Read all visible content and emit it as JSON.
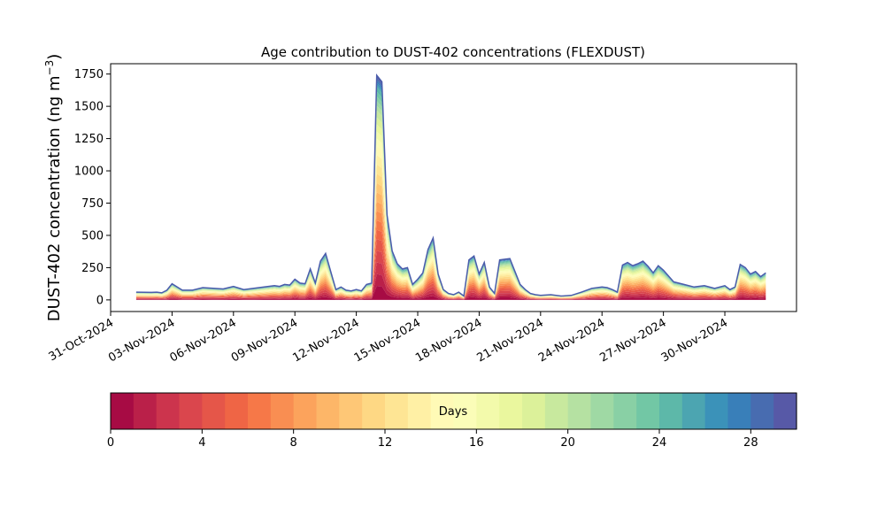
{
  "chart_data": {
    "type": "area",
    "stacked": true,
    "title": "Age contribution to DUST-402 concentrations (FLEXDUST)",
    "ylabel_main": "DUST-402 concentration (ng m",
    "ylabel_sup": "−3",
    "ylabel_close": ")",
    "xlabel": "",
    "ylim": [
      -90,
      1830
    ],
    "yticks": [
      0,
      250,
      500,
      750,
      1000,
      1250,
      1500,
      1750
    ],
    "ytick_labels": [
      "0",
      "250",
      "500",
      "750",
      "1000",
      "1250",
      "1500",
      "1750"
    ],
    "xlim": [
      "2024-10-31T00:00",
      "2024-12-03T12:00"
    ],
    "xtick_dates": [
      "2024-10-31",
      "2024-11-03",
      "2024-11-06",
      "2024-11-09",
      "2024-11-12",
      "2024-11-15",
      "2024-11-18",
      "2024-11-21",
      "2024-11-24",
      "2024-11-27",
      "2024-11-30"
    ],
    "xtick_labels": [
      "31-Oct-2024",
      "03-Nov-2024",
      "06-Nov-2024",
      "09-Nov-2024",
      "12-Nov-2024",
      "15-Nov-2024",
      "18-Nov-2024",
      "21-Nov-2024",
      "24-Nov-2024",
      "27-Nov-2024",
      "30-Nov-2024"
    ],
    "grid": false,
    "total": {
      "x": [
        "2024-11-01T06:00",
        "2024-11-02T00:00",
        "2024-11-02T06:00",
        "2024-11-02T12:00",
        "2024-11-02T18:00",
        "2024-11-03T00:00",
        "2024-11-03T12:00",
        "2024-11-04T00:00",
        "2024-11-04T12:00",
        "2024-11-05T00:00",
        "2024-11-05T12:00",
        "2024-11-06T00:00",
        "2024-11-06T12:00",
        "2024-11-07T00:00",
        "2024-11-07T12:00",
        "2024-11-08T00:00",
        "2024-11-08T06:00",
        "2024-11-08T12:00",
        "2024-11-08T18:00",
        "2024-11-09T00:00",
        "2024-11-09T06:00",
        "2024-11-09T12:00",
        "2024-11-09T18:00",
        "2024-11-10T00:00",
        "2024-11-10T06:00",
        "2024-11-10T12:00",
        "2024-11-11T00:00",
        "2024-11-11T06:00",
        "2024-11-11T12:00",
        "2024-11-11T18:00",
        "2024-11-12T00:00",
        "2024-11-12T06:00",
        "2024-11-12T12:00",
        "2024-11-12T18:00",
        "2024-11-13T00:00",
        "2024-11-13T06:00",
        "2024-11-13T12:00",
        "2024-11-13T18:00",
        "2024-11-14T00:00",
        "2024-11-14T06:00",
        "2024-11-14T12:00",
        "2024-11-14T18:00",
        "2024-11-15T00:00",
        "2024-11-15T06:00",
        "2024-11-15T12:00",
        "2024-11-15T18:00",
        "2024-11-16T00:00",
        "2024-11-16T06:00",
        "2024-11-16T12:00",
        "2024-11-16T18:00",
        "2024-11-17T00:00",
        "2024-11-17T06:00",
        "2024-11-17T12:00",
        "2024-11-17T18:00",
        "2024-11-18T00:00",
        "2024-11-18T06:00",
        "2024-11-18T12:00",
        "2024-11-18T18:00",
        "2024-11-19T00:00",
        "2024-11-19T12:00",
        "2024-11-20T00:00",
        "2024-11-20T06:00",
        "2024-11-20T12:00",
        "2024-11-20T18:00",
        "2024-11-21T00:00",
        "2024-11-21T12:00",
        "2024-11-22T00:00",
        "2024-11-22T12:00",
        "2024-11-23T00:00",
        "2024-11-23T12:00",
        "2024-11-24T00:00",
        "2024-11-24T06:00",
        "2024-11-24T12:00",
        "2024-11-24T18:00",
        "2024-11-25T00:00",
        "2024-11-25T06:00",
        "2024-11-25T12:00",
        "2024-11-25T18:00",
        "2024-11-26T00:00",
        "2024-11-26T06:00",
        "2024-11-26T12:00",
        "2024-11-26T18:00",
        "2024-11-27T00:00",
        "2024-11-27T12:00",
        "2024-11-28T00:00",
        "2024-11-28T12:00",
        "2024-11-29T00:00",
        "2024-11-29T12:00",
        "2024-11-30T00:00",
        "2024-11-30T06:00",
        "2024-11-30T12:00",
        "2024-11-30T18:00",
        "2024-12-01T00:00",
        "2024-12-01T06:00",
        "2024-12-01T12:00",
        "2024-12-01T18:00",
        "2024-12-02T00:00"
      ],
      "y": [
        60,
        58,
        60,
        55,
        75,
        125,
        75,
        75,
        95,
        90,
        85,
        105,
        80,
        90,
        100,
        110,
        105,
        120,
        115,
        160,
        130,
        125,
        240,
        130,
        300,
        360,
        80,
        100,
        75,
        70,
        80,
        70,
        120,
        130,
        1740,
        1690,
        660,
        380,
        280,
        240,
        250,
        120,
        160,
        210,
        390,
        480,
        200,
        80,
        50,
        40,
        60,
        30,
        310,
        340,
        200,
        290,
        100,
        50,
        310,
        320,
        120,
        80,
        50,
        40,
        35,
        40,
        30,
        35,
        60,
        90,
        100,
        95,
        80,
        60,
        270,
        290,
        265,
        280,
        300,
        260,
        210,
        265,
        230,
        140,
        120,
        100,
        110,
        90,
        110,
        80,
        100,
        275,
        250,
        200,
        220,
        180,
        210
      ]
    },
    "day_fractions": [
      0.06,
      0.05,
      0.05,
      0.05,
      0.05,
      0.04,
      0.04,
      0.04,
      0.04,
      0.04,
      0.04,
      0.04,
      0.04,
      0.04,
      0.04,
      0.03,
      0.03,
      0.03,
      0.03,
      0.03,
      0.02,
      0.02,
      0.02,
      0.02,
      0.02,
      0.01,
      0.01,
      0.01,
      0.01,
      0.01
    ],
    "colorbar": {
      "label": "Days",
      "range": [
        0,
        30
      ],
      "ticks": [
        0,
        4,
        8,
        12,
        16,
        20,
        24,
        28
      ],
      "tick_labels": [
        "0",
        "4",
        "8",
        "12",
        "16",
        "20",
        "24",
        "28"
      ],
      "colormap": "Spectral",
      "bins": 30
    }
  }
}
